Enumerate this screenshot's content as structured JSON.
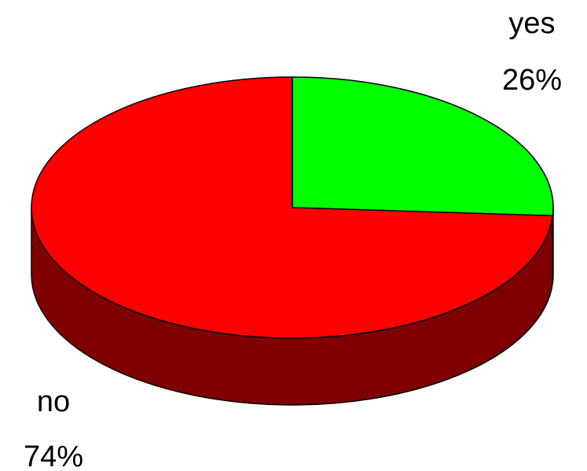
{
  "chart_data": {
    "type": "pie",
    "style": "3d",
    "grid": false,
    "legend": "none",
    "slices": [
      {
        "label": "yes",
        "value": 26,
        "percent_label": "26%",
        "color": "#00ff00",
        "side_color": "#007f00"
      },
      {
        "label": "no",
        "value": 74,
        "percent_label": "74%",
        "color": "#ff0000",
        "side_color": "#7f0000"
      }
    ]
  }
}
